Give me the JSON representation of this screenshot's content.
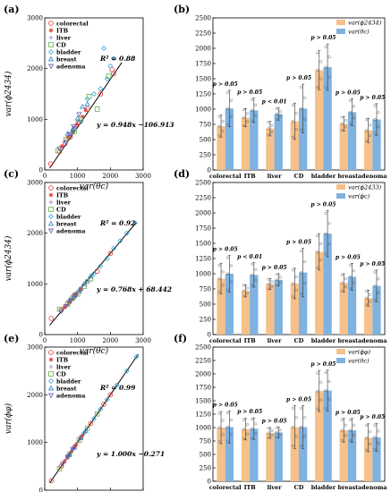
{
  "categories": [
    "colorectal",
    "ITB",
    "liver",
    "CD",
    "bladder",
    "breast",
    "adenoma"
  ],
  "colors": {
    "orange": "#f5c08a",
    "blue": "#7fb2df",
    "fit_line": "#000000",
    "markers": {
      "colorectal": "#e8352f",
      "ITB": "#e8352f",
      "liver": "#9a7ac2",
      "CD": "#62b246",
      "bladder": "#35a4d8",
      "breast": "#2f7ec4",
      "adenoma": "#6a55b0"
    }
  },
  "chart_data": [
    {
      "panel": "(a)",
      "type": "scatter",
      "xlabel": "var(θc)",
      "ylabel": "var(ϕ2434)",
      "xlim": [
        0,
        3000
      ],
      "ylim": [
        0,
        3000
      ],
      "xticks": [
        "0",
        "1000",
        "2000",
        "3000"
      ],
      "yticks": [
        "0",
        "1000",
        "2000",
        "3000"
      ],
      "legend": [
        "colorectal",
        "ITB",
        "liver",
        "CD",
        "bladder",
        "breast",
        "adenoma"
      ],
      "r2_text": "R² = 0.88",
      "eq_text": "y = 0.948x −106.913",
      "fit": {
        "slope": 0.948,
        "intercept": -106.913,
        "xrange": [
          150,
          2350
        ]
      },
      "points": [
        [
          180,
          120,
          "colorectal"
        ],
        [
          450,
          360,
          "colorectal"
        ],
        [
          620,
          520,
          "colorectal"
        ],
        [
          780,
          650,
          "colorectal"
        ],
        [
          900,
          820,
          "colorectal"
        ],
        [
          1050,
          940,
          "colorectal"
        ],
        [
          1300,
          1200,
          "colorectal"
        ],
        [
          1700,
          1500,
          "colorectal"
        ],
        [
          2050,
          1980,
          "colorectal"
        ],
        [
          2100,
          1900,
          "colorectal"
        ],
        [
          520,
          470,
          "ITB"
        ],
        [
          700,
          640,
          "ITB"
        ],
        [
          850,
          760,
          "ITB"
        ],
        [
          980,
          900,
          "ITB"
        ],
        [
          1150,
          1050,
          "ITB"
        ],
        [
          1250,
          1180,
          "ITB"
        ],
        [
          600,
          560,
          "liver"
        ],
        [
          800,
          700,
          "liver"
        ],
        [
          920,
          850,
          "liver"
        ],
        [
          1000,
          960,
          "liver"
        ],
        [
          400,
          380,
          "CD"
        ],
        [
          650,
          600,
          "CD"
        ],
        [
          900,
          760,
          "CD"
        ],
        [
          1100,
          1000,
          "CD"
        ],
        [
          1350,
          1450,
          "CD"
        ],
        [
          1600,
          1200,
          "CD"
        ],
        [
          1950,
          1850,
          "CD"
        ],
        [
          900,
          800,
          "bladder"
        ],
        [
          1100,
          950,
          "bladder"
        ],
        [
          1300,
          1400,
          "bladder"
        ],
        [
          1500,
          1500,
          "bladder"
        ],
        [
          1700,
          1600,
          "bladder"
        ],
        [
          1900,
          1800,
          "bladder"
        ],
        [
          2000,
          2050,
          "bladder"
        ],
        [
          2100,
          2200,
          "bladder"
        ],
        [
          1800,
          2400,
          "bladder"
        ],
        [
          700,
          720,
          "breast"
        ],
        [
          850,
          800,
          "breast"
        ],
        [
          1000,
          1020,
          "breast"
        ],
        [
          1150,
          1250,
          "breast"
        ],
        [
          1300,
          1300,
          "breast"
        ],
        [
          450,
          420,
          "adenoma"
        ],
        [
          650,
          550,
          "adenoma"
        ],
        [
          760,
          700,
          "adenoma"
        ],
        [
          880,
          860,
          "adenoma"
        ],
        [
          1050,
          1100,
          "adenoma"
        ]
      ]
    },
    {
      "panel": "(b)",
      "type": "bar",
      "ylim": [
        0,
        2500
      ],
      "yticks": [
        "0",
        "250",
        "500",
        "750",
        "1000",
        "1250",
        "1500",
        "1750",
        "2000",
        "2250",
        "2500"
      ],
      "legend": [
        "var(ϕ2434)",
        "var(θc)"
      ],
      "series": [
        {
          "name": "var(ϕ2434)",
          "values": [
            720,
            860,
            680,
            800,
            1640,
            760,
            650
          ],
          "err": [
            180,
            150,
            120,
            300,
            320,
            120,
            200
          ]
        },
        {
          "name": "var(θc)",
          "values": [
            1010,
            980,
            920,
            1010,
            1690,
            950,
            830
          ],
          "err": [
            300,
            200,
            100,
            400,
            380,
            220,
            260
          ]
        }
      ],
      "pvalues": [
        "p > 0.05",
        "p > 0.05",
        "p < 0.01",
        "p > 0.05",
        "p > 0.05",
        "p > 0.05",
        "p > 0.05"
      ]
    },
    {
      "panel": "(c)",
      "type": "scatter",
      "xlabel": "var(θc)",
      "ylabel": "var(ϕ2434)",
      "xlim": [
        0,
        3000
      ],
      "ylim": [
        0,
        3000
      ],
      "xticks": [
        "0",
        "1000",
        "2000",
        "3000"
      ],
      "yticks": [
        "0",
        "1000",
        "2000",
        "3000"
      ],
      "legend": [
        "colorectal",
        "ITB",
        "liver",
        "CD",
        "bladder",
        "breast",
        "adenoma"
      ],
      "r2_text": "R² = 0.92",
      "eq_text": "y = 0.768x + 68.442",
      "fit": {
        "slope": 0.768,
        "intercept": 68.442,
        "xrange": [
          150,
          2800
        ]
      },
      "points": [
        [
          200,
          320,
          "colorectal"
        ],
        [
          500,
          480,
          "colorectal"
        ],
        [
          700,
          620,
          "colorectal"
        ],
        [
          900,
          780,
          "colorectal"
        ],
        [
          1100,
          900,
          "colorectal"
        ],
        [
          1300,
          1050,
          "colorectal"
        ],
        [
          1600,
          1250,
          "colorectal"
        ],
        [
          2000,
          1600,
          "colorectal"
        ],
        [
          600,
          540,
          "ITB"
        ],
        [
          750,
          640,
          "ITB"
        ],
        [
          850,
          700,
          "ITB"
        ],
        [
          950,
          800,
          "ITB"
        ],
        [
          1100,
          880,
          "ITB"
        ],
        [
          650,
          560,
          "liver"
        ],
        [
          800,
          700,
          "liver"
        ],
        [
          900,
          760,
          "liver"
        ],
        [
          1000,
          850,
          "liver"
        ],
        [
          450,
          500,
          "CD"
        ],
        [
          700,
          600,
          "CD"
        ],
        [
          850,
          720,
          "CD"
        ],
        [
          1000,
          800,
          "CD"
        ],
        [
          1200,
          950,
          "CD"
        ],
        [
          1400,
          1100,
          "CD"
        ],
        [
          900,
          750,
          "bladder"
        ],
        [
          1100,
          900,
          "bladder"
        ],
        [
          1300,
          1050,
          "bladder"
        ],
        [
          1500,
          1200,
          "bladder"
        ],
        [
          1700,
          1350,
          "bladder"
        ],
        [
          1900,
          1500,
          "bladder"
        ],
        [
          2100,
          1700,
          "bladder"
        ],
        [
          2300,
          1850,
          "bladder"
        ],
        [
          2500,
          2000,
          "bladder"
        ],
        [
          2750,
          2200,
          "bladder"
        ],
        [
          750,
          680,
          "breast"
        ],
        [
          900,
          780,
          "breast"
        ],
        [
          1050,
          850,
          "breast"
        ],
        [
          1200,
          1000,
          "breast"
        ],
        [
          1400,
          1150,
          "breast"
        ],
        [
          500,
          460,
          "adenoma"
        ],
        [
          650,
          560,
          "adenoma"
        ],
        [
          800,
          660,
          "adenoma"
        ],
        [
          950,
          760,
          "adenoma"
        ]
      ]
    },
    {
      "panel": "(d)",
      "type": "bar",
      "ylim": [
        0,
        2500
      ],
      "yticks": [
        "0",
        "250",
        "500",
        "750",
        "1000",
        "1250",
        "1500",
        "1750",
        "2000",
        "2250",
        "2500"
      ],
      "legend": [
        "var(ϕ2433)",
        "var(ϕc)"
      ],
      "series": [
        {
          "name": "var(ϕ2433)",
          "values": [
            920,
            720,
            830,
            840,
            1360,
            850,
            600
          ],
          "err": [
            250,
            100,
            90,
            250,
            300,
            150,
            130
          ]
        },
        {
          "name": "var(ϕc)",
          "values": [
            1000,
            980,
            900,
            1020,
            1660,
            950,
            800
          ],
          "err": [
            300,
            200,
            100,
            400,
            380,
            220,
            260
          ]
        }
      ],
      "pvalues": [
        "p > 0.05",
        "p < 0.01",
        "p > 0.05",
        "p > 0.05",
        "p > 0.05",
        "p > 0.05",
        "p > 0.05"
      ]
    },
    {
      "panel": "(e)",
      "type": "scatter",
      "xlabel": "var(θc)",
      "ylabel": "var(ϕφ)",
      "xlim": [
        0,
        3000
      ],
      "ylim": [
        0,
        3000
      ],
      "xticks": [
        "0",
        "1000",
        "2000",
        "3000"
      ],
      "yticks": [
        "0",
        "1000",
        "2000",
        "3000"
      ],
      "legend": [
        "colorectal",
        "ITB",
        "liver",
        "CD",
        "bladder",
        "breast",
        "adenoma"
      ],
      "r2_text": "R² = 0.99",
      "eq_text": "y = 1.000x −0.271",
      "fit": {
        "slope": 1.0,
        "intercept": -0.271,
        "xrange": [
          150,
          2850
        ]
      },
      "points": [
        [
          200,
          200,
          "colorectal"
        ],
        [
          500,
          500,
          "colorectal"
        ],
        [
          700,
          700,
          "colorectal"
        ],
        [
          900,
          900,
          "colorectal"
        ],
        [
          1100,
          1100,
          "colorectal"
        ],
        [
          1400,
          1400,
          "colorectal"
        ],
        [
          1800,
          1800,
          "colorectal"
        ],
        [
          2000,
          2000,
          "colorectal"
        ],
        [
          600,
          600,
          "ITB"
        ],
        [
          800,
          800,
          "ITB"
        ],
        [
          950,
          950,
          "ITB"
        ],
        [
          1150,
          1150,
          "ITB"
        ],
        [
          650,
          650,
          "liver"
        ],
        [
          850,
          850,
          "liver"
        ],
        [
          1000,
          1000,
          "liver"
        ],
        [
          450,
          450,
          "CD"
        ],
        [
          750,
          750,
          "CD"
        ],
        [
          1050,
          1050,
          "CD"
        ],
        [
          1300,
          1300,
          "CD"
        ],
        [
          1600,
          1600,
          "CD"
        ],
        [
          1200,
          1200,
          "bladder"
        ],
        [
          1500,
          1500,
          "bladder"
        ],
        [
          1700,
          1700,
          "bladder"
        ],
        [
          1900,
          1900,
          "bladder"
        ],
        [
          2200,
          2200,
          "bladder"
        ],
        [
          2500,
          2500,
          "bladder"
        ],
        [
          2800,
          2800,
          "bladder"
        ],
        [
          750,
          750,
          "breast"
        ],
        [
          900,
          900,
          "breast"
        ],
        [
          1100,
          1100,
          "breast"
        ],
        [
          1250,
          1250,
          "breast"
        ],
        [
          550,
          550,
          "adenoma"
        ],
        [
          700,
          700,
          "adenoma"
        ],
        [
          850,
          850,
          "adenoma"
        ]
      ]
    },
    {
      "panel": "(f)",
      "type": "bar",
      "ylim": [
        0,
        2500
      ],
      "yticks": [
        "0",
        "250",
        "500",
        "750",
        "1000",
        "1250",
        "1500",
        "1750",
        "2000",
        "2250",
        "2500"
      ],
      "legend": [
        "var(ϕφ)",
        "var(θc)"
      ],
      "series": [
        {
          "name": "var(ϕφ)",
          "values": [
            1000,
            970,
            900,
            1010,
            1680,
            950,
            810
          ],
          "err": [
            300,
            200,
            100,
            400,
            380,
            220,
            260
          ]
        },
        {
          "name": "var(θc)",
          "values": [
            1010,
            980,
            910,
            1010,
            1690,
            950,
            820
          ],
          "err": [
            300,
            200,
            100,
            400,
            380,
            220,
            260
          ]
        }
      ],
      "pvalues": [
        "p > 0.05",
        "p > 0.05",
        "p > 0.05",
        "p > 0.05",
        "p > 0.05",
        "p > 0.05",
        "p > 0.05"
      ]
    }
  ]
}
